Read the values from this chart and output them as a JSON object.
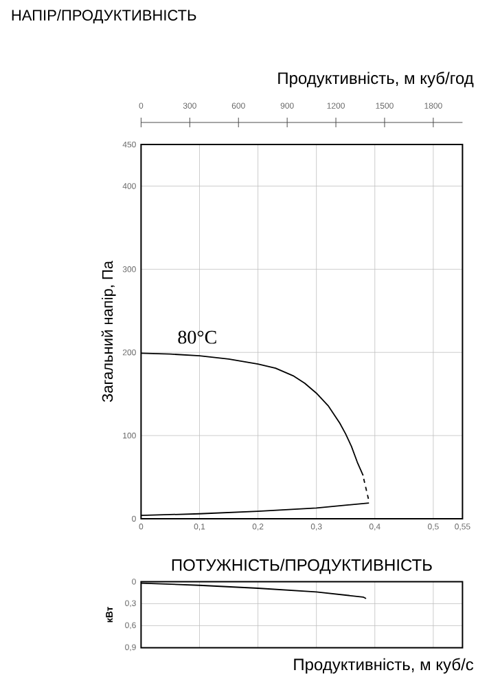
{
  "chart_data": [
    {
      "type": "line",
      "title": "НАПІР/ПРОДУКТИВНІСТЬ",
      "x2label": "Продуктивність, м куб/год",
      "ylabel": "Загальний напір, Па",
      "xlim": [
        0,
        0.55
      ],
      "xticks": [
        0,
        {
          "value": 0.1,
          "label": "0,1"
        },
        {
          "value": 0.2,
          "label": "0,2"
        },
        {
          "value": 0.3,
          "label": "0,3"
        },
        {
          "value": 0.4,
          "label": "0,4"
        },
        {
          "value": 0.5,
          "label": "0,5"
        },
        {
          "value": 0.55,
          "label": "0,55"
        }
      ],
      "x2lim": [
        0,
        1980
      ],
      "x2ticks": [
        0,
        300,
        600,
        900,
        1200,
        1500,
        1800
      ],
      "ylim": [
        0,
        450
      ],
      "yticks": [
        0,
        100,
        200,
        300,
        400,
        450
      ],
      "grid": true,
      "series": [
        {
          "color": "#000000",
          "line_style": "solid",
          "x": [
            0,
            0.05,
            0.1,
            0.15,
            0.2,
            0.23,
            0.26,
            0.28,
            0.3,
            0.32,
            0.34,
            0.35,
            0.36,
            0.37,
            0.38
          ],
          "values": [
            199,
            198,
            196,
            192,
            186,
            181,
            172,
            163,
            151,
            136,
            115,
            102,
            87,
            68,
            52
          ]
        },
        {
          "color": "#000000",
          "line_style": "solid",
          "x": [
            0,
            0.1,
            0.2,
            0.3,
            0.39
          ],
          "values": [
            4,
            6,
            9,
            13,
            19
          ]
        },
        {
          "color": "#000000",
          "line_style": "dashed",
          "x": [
            0.381,
            0.385,
            0.389
          ],
          "values": [
            48,
            36,
            24
          ]
        }
      ],
      "annotations": [
        "80°C"
      ]
    },
    {
      "type": "line",
      "title": "ПОТУЖНІСТЬ/ПРОДУКТИВНІСТЬ",
      "xlabel": "Продуктивність, м куб/с",
      "ylabel": "кВт",
      "xlim": [
        0,
        0.55
      ],
      "xticks": [
        {
          "value": 0.1,
          "label": null
        },
        {
          "value": 0.2,
          "label": null
        },
        {
          "value": 0.3,
          "label": null
        },
        {
          "value": 0.4,
          "label": null
        },
        {
          "value": 0.5,
          "label": null
        }
      ],
      "ylim": [
        0.9,
        0
      ],
      "yticks": [
        0,
        {
          "value": 0.3,
          "label": "0,3"
        },
        {
          "value": 0.6,
          "label": "0,6"
        },
        {
          "value": 0.9,
          "label": "0,9"
        }
      ],
      "grid": true,
      "tick_labels": "y",
      "series": [
        {
          "color": "#000000",
          "line_style": "solid",
          "x": [
            0,
            0.1,
            0.2,
            0.3,
            0.38,
            0.385
          ],
          "values": [
            0.02,
            0.05,
            0.09,
            0.14,
            0.21,
            0.23
          ]
        }
      ]
    }
  ]
}
